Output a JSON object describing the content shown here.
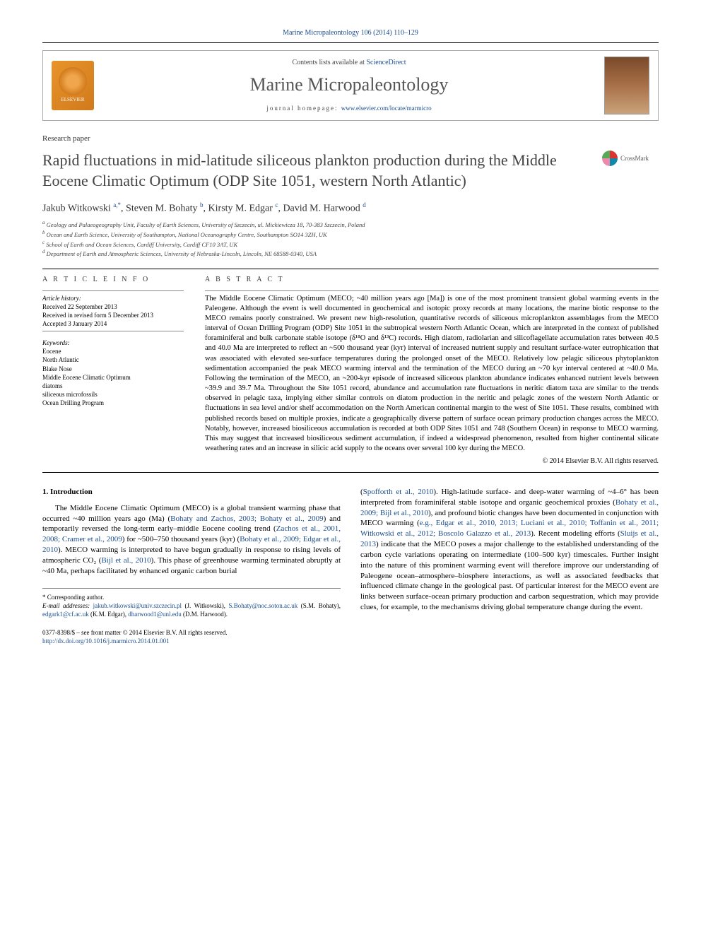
{
  "header": {
    "top_citation": "Marine Micropaleontology 106 (2014) 110–129",
    "contents_line_prefix": "Contents lists available at ",
    "contents_link": "ScienceDirect",
    "journal_name": "Marine Micropaleontology",
    "homepage_prefix": "journal homepage: ",
    "homepage_url": "www.elsevier.com/locate/marmicro",
    "elsevier_label": "ELSEVIER"
  },
  "article": {
    "type": "Research paper",
    "title": "Rapid fluctuations in mid-latitude siliceous plankton production during the Middle Eocene Climatic Optimum (ODP Site 1051, western North Atlantic)",
    "crossmark_label": "CrossMark"
  },
  "authors": {
    "line_html": "Jakub Witkowski <sup><a>a,</a>*</sup>, Steven M. Bohaty <sup><a>b</a></sup>, Kirsty M. Edgar <sup><a>c</a></sup>, David M. Harwood <sup><a>d</a></sup>"
  },
  "affiliations": [
    "a Geology and Palaeogeography Unit, Faculty of Earth Sciences, University of Szczecin, ul. Mickiewicza 18, 70-383 Szczecin, Poland",
    "b Ocean and Earth Science, University of Southampton, National Oceanography Centre, Southampton SO14 3ZH, UK",
    "c School of Earth and Ocean Sciences, Cardiff University, Cardiff CF10 3AT, UK",
    "d Department of Earth and Atmospheric Sciences, University of Nebraska-Lincoln, Lincoln, NE 68588-0340, USA"
  ],
  "article_info": {
    "heading": "A R T I C L E   I N F O",
    "history_label": "Article history:",
    "received": "Received 22 September 2013",
    "revised": "Received in revised form 5 December 2013",
    "accepted": "Accepted 3 January 2014",
    "keywords_label": "Keywords:",
    "keywords": [
      "Eocene",
      "North Atlantic",
      "Blake Nose",
      "Middle Eocene Climatic Optimum",
      "diatoms",
      "siliceous microfossils",
      "Ocean Drilling Program"
    ]
  },
  "abstract": {
    "heading": "A B S T R A C T",
    "text": "The Middle Eocene Climatic Optimum (MECO; ~40 million years ago [Ma]) is one of the most prominent transient global warming events in the Paleogene. Although the event is well documented in geochemical and isotopic proxy records at many locations, the marine biotic response to the MECO remains poorly constrained. We present new high-resolution, quantitative records of siliceous microplankton assemblages from the MECO interval of Ocean Drilling Program (ODP) Site 1051 in the subtropical western North Atlantic Ocean, which are interpreted in the context of published foraminiferal and bulk carbonate stable isotope (δ¹⁸O and δ¹³C) records. High diatom, radiolarian and silicoflagellate accumulation rates between 40.5 and 40.0 Ma are interpreted to reflect an ~500 thousand year (kyr) interval of increased nutrient supply and resultant surface-water eutrophication that was associated with elevated sea-surface temperatures during the prolonged onset of the MECO. Relatively low pelagic siliceous phytoplankton sedimentation accompanied the peak MECO warming interval and the termination of the MECO during an ~70 kyr interval centered at ~40.0 Ma. Following the termination of the MECO, an ~200-kyr episode of increased siliceous plankton abundance indicates enhanced nutrient levels between ~39.9 and 39.7 Ma. Throughout the Site 1051 record, abundance and accumulation rate fluctuations in neritic diatom taxa are similar to the trends observed in pelagic taxa, implying either similar controls on diatom production in the neritic and pelagic zones of the western North Atlantic or fluctuations in sea level and/or shelf accommodation on the North American continental margin to the west of Site 1051. These results, combined with published records based on multiple proxies, indicate a geographically diverse pattern of surface ocean primary production changes across the MECO. Notably, however, increased biosiliceous accumulation is recorded at both ODP Sites 1051 and 748 (Southern Ocean) in response to MECO warming. This may suggest that increased biosiliceous sediment accumulation, if indeed a widespread phenomenon, resulted from higher continental silicate weathering rates and an increase in silicic acid supply to the oceans over several 100 kyr during the MECO.",
    "copyright": "© 2014 Elsevier B.V. All rights reserved."
  },
  "body": {
    "section_heading": "1. Introduction",
    "col1": "The Middle Eocene Climatic Optimum (MECO) is a global transient warming phase that occurred ~40 million years ago (Ma) (Bohaty and Zachos, 2003; Bohaty et al., 2009) and temporarily reversed the long-term early–middle Eocene cooling trend (Zachos et al., 2001, 2008; Cramer et al., 2009) for ~500–750 thousand years (kyr) (Bohaty et al., 2009; Edgar et al., 2010). MECO warming is interpreted to have begun gradually in response to rising levels of atmospheric CO₂ (Bijl et al., 2010). This phase of greenhouse warming terminated abruptly at ~40 Ma, perhaps facilitated by enhanced organic carbon burial",
    "col2": "(Spofforth et al., 2010). High-latitude surface- and deep-water warming of ~4–6° has been interpreted from foraminiferal stable isotope and organic geochemical proxies (Bohaty et al., 2009; Bijl et al., 2010), and profound biotic changes have been documented in conjunction with MECO warming (e.g., Edgar et al., 2010, 2013; Luciani et al., 2010; Toffanin et al., 2011; Witkowski et al., 2012; Boscolo Galazzo et al., 2013). Recent modeling efforts (Sluijs et al., 2013) indicate that the MECO poses a major challenge to the established understanding of the carbon cycle variations operating on intermediate (100–500 kyr) timescales. Further insight into the nature of this prominent warming event will therefore improve our understanding of Paleogene ocean–atmosphere–biosphere interactions, as well as associated feedbacks that influenced climate change in the geological past. Of particular interest for the MECO event are links between surface-ocean primary production and carbon sequestration, which may provide clues, for example, to the mechanisms driving global temperature change during the event."
  },
  "footnotes": {
    "corresponding": "* Corresponding author.",
    "emails_label": "E-mail addresses: ",
    "emails": [
      {
        "addr": "jakub.witkowski@univ.szczecin.pl",
        "who": " (J. Witkowski),"
      },
      {
        "addr": "S.Bohaty@noc.soton.ac.uk",
        "who": " (S.M. Bohaty), "
      },
      {
        "addr": "edgark1@cf.ac.uk",
        "who": " (K.M. Edgar),"
      },
      {
        "addr": "dharwood1@unl.edu",
        "who": " (D.M. Harwood)."
      }
    ]
  },
  "bottom": {
    "issn_line": "0377-8398/$ – see front matter © 2014 Elsevier B.V. All rights reserved.",
    "doi": "http://dx.doi.org/10.1016/j.marmicro.2014.01.001"
  },
  "colors": {
    "link": "#1a4b8c",
    "text": "#000000",
    "muted": "#444444"
  }
}
